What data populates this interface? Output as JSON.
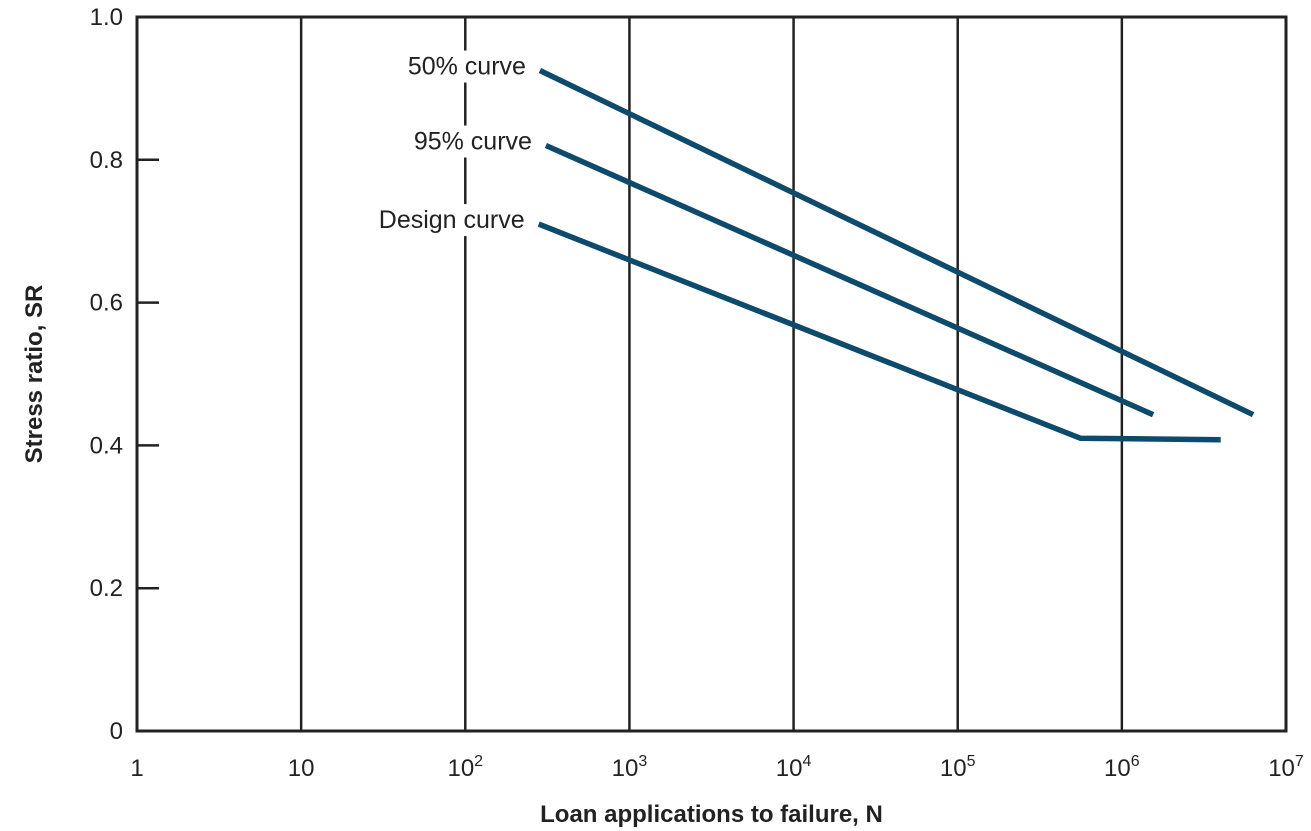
{
  "chart_data": {
    "type": "line",
    "xlabel": "Loan applications to failure, N",
    "ylabel": "Stress ratio, SR",
    "xscale": "log",
    "xlim": [
      1,
      10000000
    ],
    "ylim": [
      0,
      1.0
    ],
    "grid": "vertical-at-decades",
    "x_ticks": [
      {
        "value": 1,
        "base": "1",
        "exp": ""
      },
      {
        "value": 10,
        "base": "10",
        "exp": ""
      },
      {
        "value": 100,
        "base": "10",
        "exp": "2"
      },
      {
        "value": 1000,
        "base": "10",
        "exp": "3"
      },
      {
        "value": 10000,
        "base": "10",
        "exp": "4"
      },
      {
        "value": 100000,
        "base": "10",
        "exp": "5"
      },
      {
        "value": 1000000,
        "base": "10",
        "exp": "6"
      },
      {
        "value": 10000000,
        "base": "10",
        "exp": "7"
      }
    ],
    "y_ticks": [
      {
        "value": 0,
        "label": "0"
      },
      {
        "value": 0.2,
        "label": "0.2"
      },
      {
        "value": 0.4,
        "label": "0.4"
      },
      {
        "value": 0.6,
        "label": "0.6"
      },
      {
        "value": 0.8,
        "label": "0.8"
      },
      {
        "value": 1.0,
        "label": "1.0"
      }
    ],
    "series": [
      {
        "name": "50% curve",
        "points": [
          [
            285,
            0.925
          ],
          [
            6300000,
            0.443
          ]
        ]
      },
      {
        "name": "95% curve",
        "points": [
          [
            310,
            0.82
          ],
          [
            1550000,
            0.443
          ]
        ]
      },
      {
        "name": "Design curve",
        "points": [
          [
            280,
            0.71
          ],
          [
            560000,
            0.41
          ],
          [
            4000000,
            0.408
          ]
        ]
      }
    ],
    "colors": {
      "line": "#0e4a6b",
      "frame": "#222222",
      "grid": "#222222"
    }
  }
}
